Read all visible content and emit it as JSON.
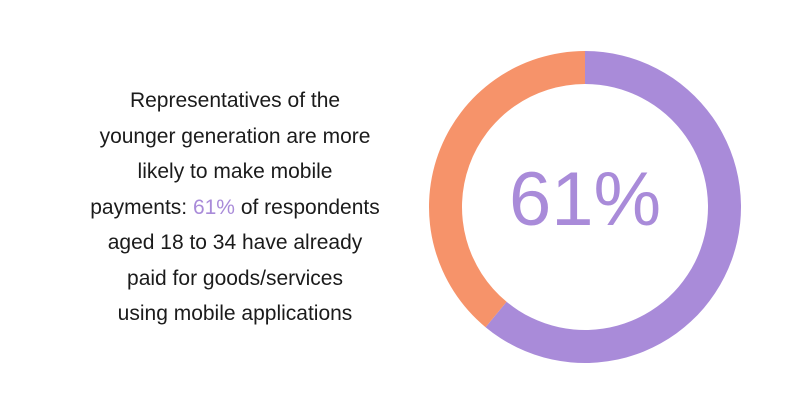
{
  "text": {
    "line1": "Representatives of the",
    "line2": "younger generation are more",
    "line3": "likely to make mobile",
    "line4_pre": "payments: ",
    "line4_highlight": "61%",
    "line4_post": " of respondents",
    "line5": "aged 18 to 34 have already",
    "line6": "paid for goods/services",
    "line7": "using mobile applications"
  },
  "colors": {
    "accent": "#a98bd9",
    "primary_segment": "#a98bd9",
    "secondary_segment": "#f6936a",
    "text": "#1b1b1b"
  },
  "chart_data": {
    "type": "pie",
    "variant": "donut",
    "center_label": "61%",
    "slices": [
      {
        "value": 61,
        "color": "#a98bd9"
      },
      {
        "value": 39,
        "color": "#f6936a"
      }
    ]
  }
}
